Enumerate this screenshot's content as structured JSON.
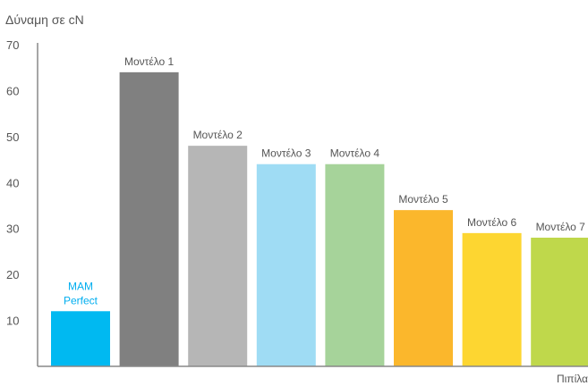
{
  "chart_data": {
    "type": "bar",
    "ylabel": "Δύναμη σε cN",
    "xlabel": "Πιπίλα",
    "ylim": [
      0,
      70
    ],
    "yticks": [
      10,
      20,
      30,
      40,
      50,
      60,
      70
    ],
    "grid": false,
    "categories": [
      [
        "MAM",
        "Perfect"
      ],
      [
        "Μοντέλο 1"
      ],
      [
        "Μοντέλο 2"
      ],
      [
        "Μοντέλο 3"
      ],
      [
        "Μοντέλο 4"
      ],
      [
        "Μοντέλο 5"
      ],
      [
        "Μοντέλο 6"
      ],
      [
        "Μοντέλο 7"
      ]
    ],
    "values": [
      12,
      64,
      48,
      44,
      44,
      34,
      29,
      28
    ],
    "bar_colors": [
      "#00b9f1",
      "#808080",
      "#b6b6b6",
      "#9fdcf4",
      "#a6d39a",
      "#fbb72c",
      "#fdd631",
      "#bfd84b"
    ],
    "label_colors": [
      "#00aeef",
      "#555555",
      "#555555",
      "#555555",
      "#555555",
      "#555555",
      "#555555",
      "#555555"
    ],
    "axis_color": "#888888",
    "text_color": "#555555"
  }
}
